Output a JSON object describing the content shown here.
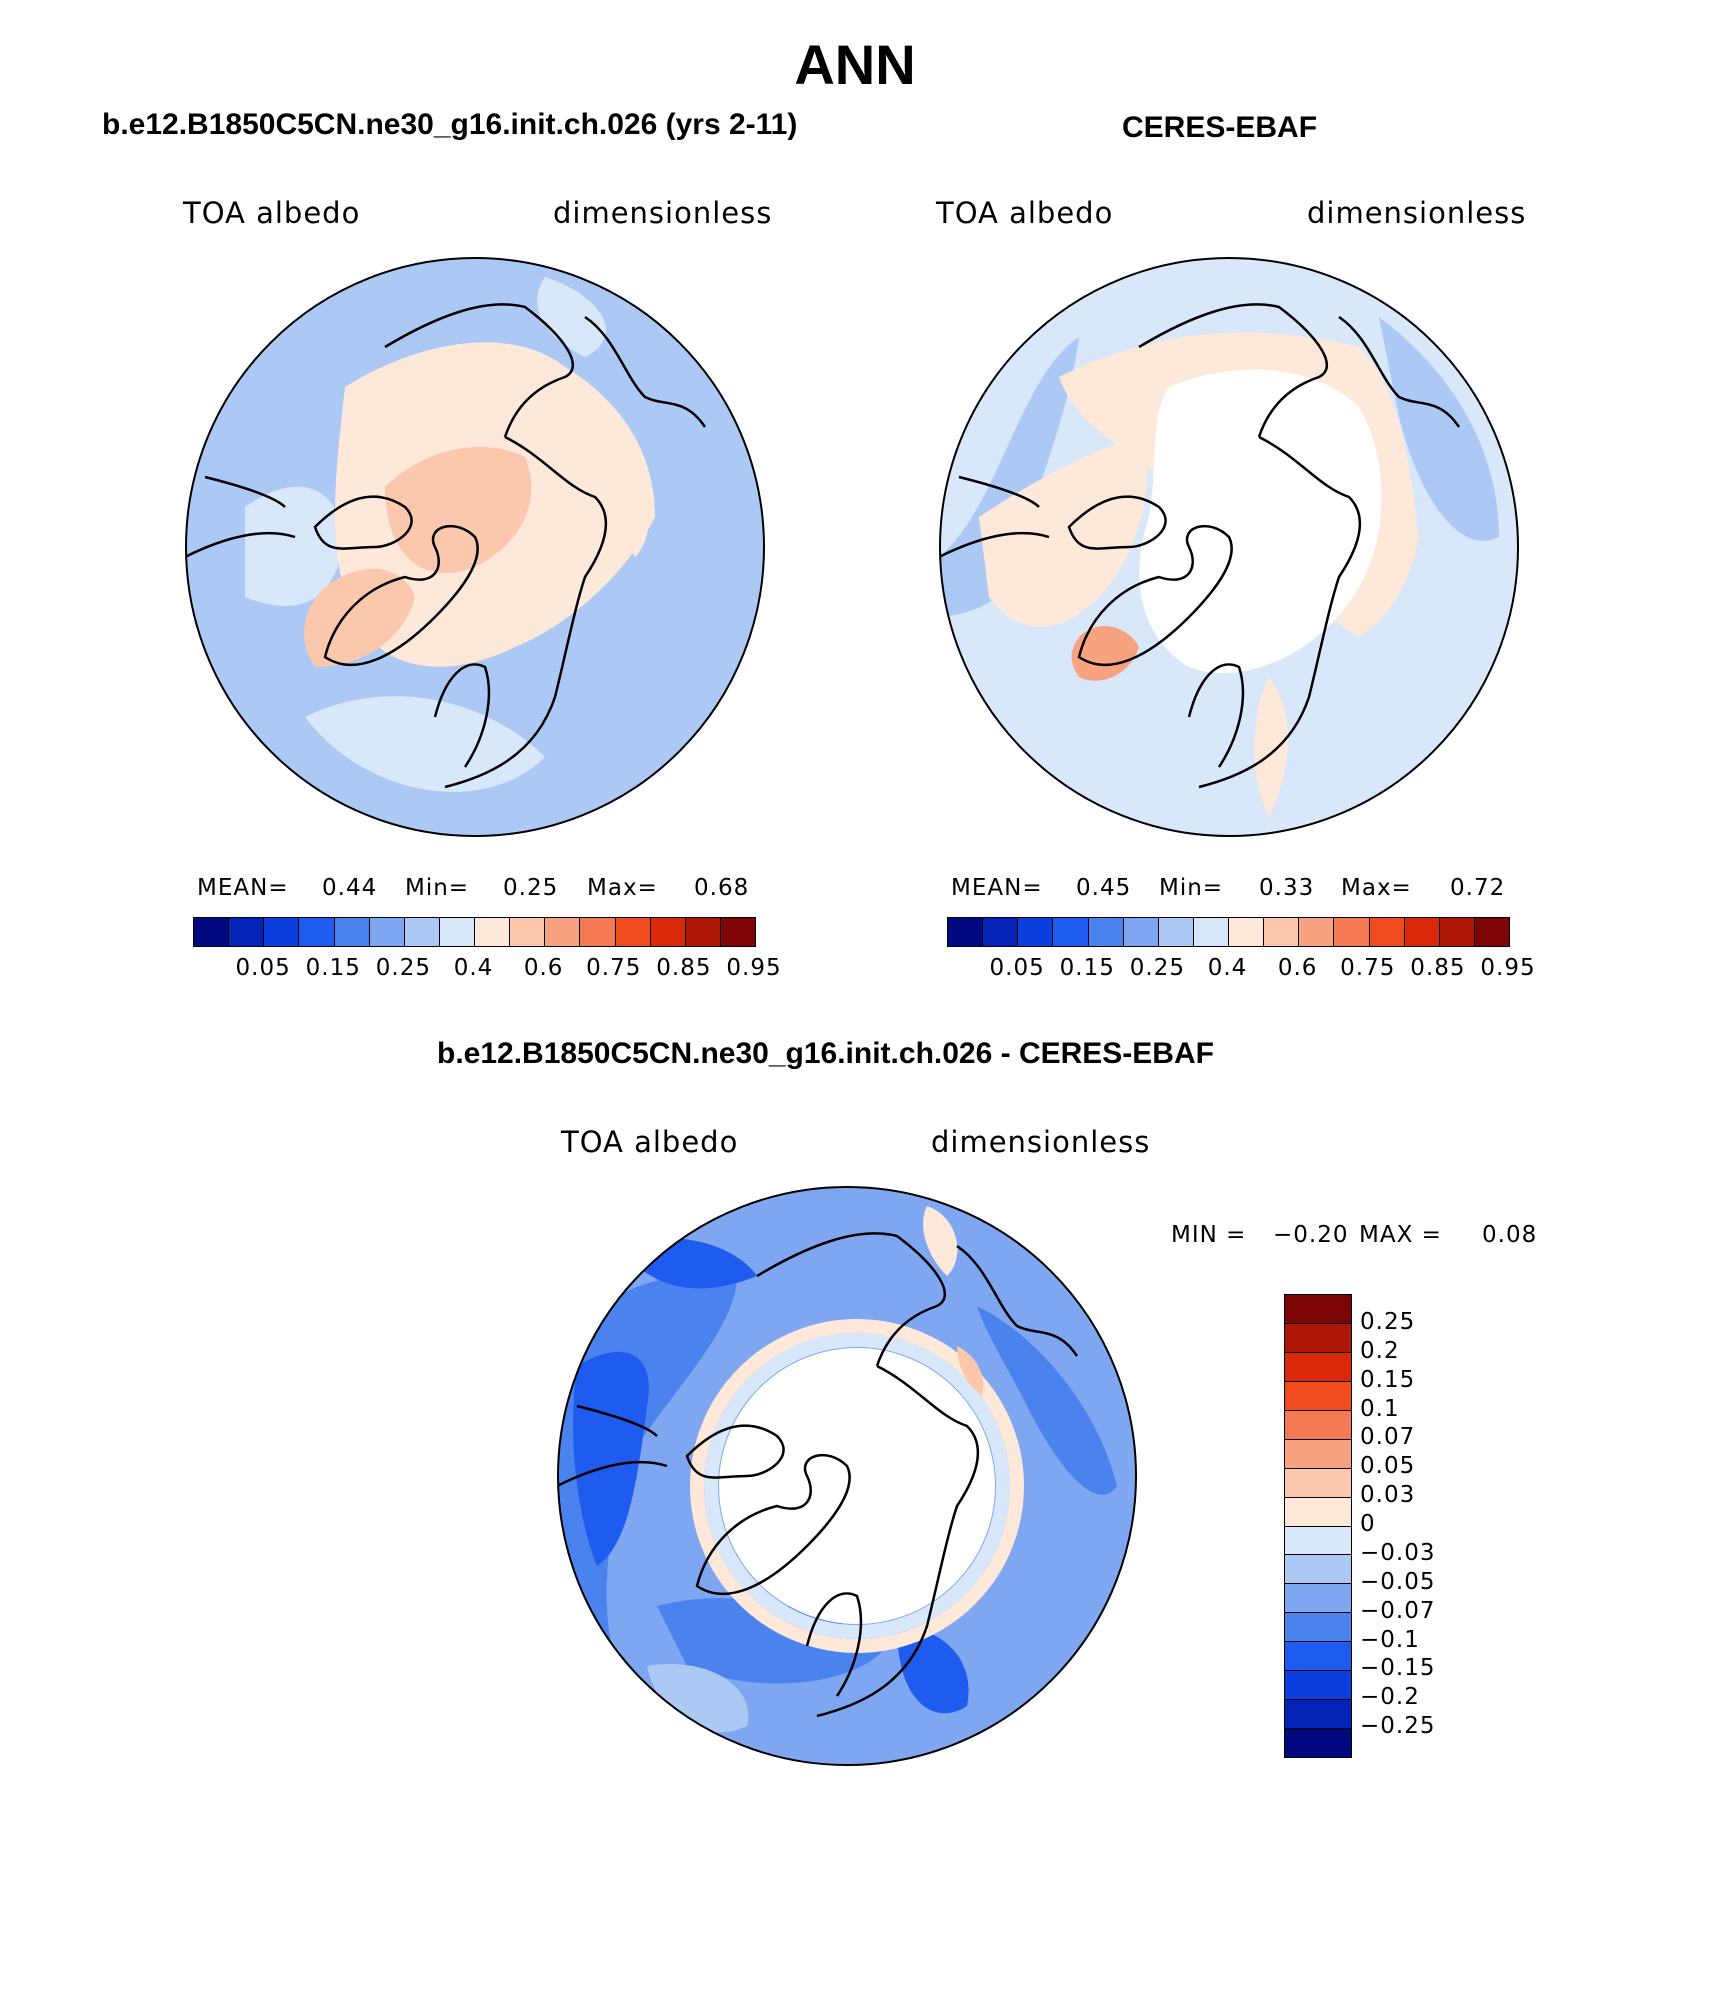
{
  "title": "ANN",
  "panels": [
    {
      "case_title": "b.e12.B1850C5CN.ne30_g16.init.ch.026 (yrs 2-11)",
      "variable": "TOA albedo",
      "units": "dimensionless",
      "stats": {
        "mean_label": "MEAN=",
        "mean": "0.44",
        "min_label": "Min=",
        "min": "0.25",
        "max_label": "Max=",
        "max": "0.68"
      }
    },
    {
      "case_title": "CERES-EBAF",
      "variable": "TOA albedo",
      "units": "dimensionless",
      "stats": {
        "mean_label": "MEAN=",
        "mean": "0.45",
        "min_label": "Min=",
        "min": "0.33",
        "max_label": "Max=",
        "max": "0.72"
      }
    },
    {
      "case_title": "b.e12.B1850C5CN.ne30_g16.init.ch.026 - CERES-EBAF",
      "variable": "TOA albedo",
      "units": "dimensionless",
      "stats": {
        "min_label": "MIN =",
        "min": "−0.20",
        "max_label": "MAX =",
        "max": "0.08"
      }
    }
  ],
  "colorbar_main": {
    "ticks": [
      "0.05",
      "0.15",
      "0.25",
      "0.4",
      "0.6",
      "0.75",
      "0.85",
      "0.95"
    ],
    "colors": [
      "#000a7e",
      "#0323b6",
      "#0a3fdd",
      "#1f5bef",
      "#4a82ee",
      "#7ea6f1",
      "#acc9f6",
      "#d8e8fa",
      "#fde8da",
      "#fbc8ad",
      "#f8a27f",
      "#f57952",
      "#f04a1f",
      "#d9280a",
      "#ad1806",
      "#7d0503"
    ]
  },
  "colorbar_diff": {
    "ticks": [
      "0.25",
      "0.2",
      "0.15",
      "0.1",
      "0.07",
      "0.05",
      "0.03",
      "0",
      "−0.03",
      "−0.05",
      "−0.07",
      "−0.1",
      "−0.15",
      "−0.2",
      "−0.25"
    ],
    "colors": [
      "#7d0503",
      "#ad1806",
      "#d9280a",
      "#f04a1f",
      "#f57952",
      "#f8a27f",
      "#fbc8ad",
      "#fde8da",
      "#d8e8fa",
      "#acc9f6",
      "#7ea6f1",
      "#4a82ee",
      "#1f5bef",
      "#0a3fdd",
      "#0323b6",
      "#000a7e"
    ]
  },
  "map_colors": {
    "ocean_model": "#acc9f6",
    "light_blue": "#d8e8fa",
    "mid_blue": "#7ea6f1",
    "pale_orange": "#fde8da",
    "orange": "#fbc8ad",
    "deeper_orange": "#f8a27f",
    "blue_strong": "#4a82ee",
    "blue_deep": "#1f5bef",
    "missing": "#ffffff"
  }
}
